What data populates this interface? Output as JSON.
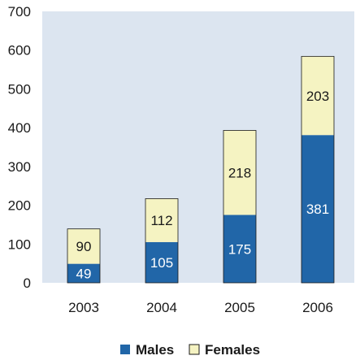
{
  "chart_data": {
    "type": "bar",
    "stacked": true,
    "categories": [
      "2003",
      "2004",
      "2005",
      "2006"
    ],
    "series": [
      {
        "name": "Males",
        "values": [
          49,
          105,
          175,
          381
        ],
        "color": "#2166a8",
        "label_color": "#ffffff"
      },
      {
        "name": "Females",
        "values": [
          90,
          112,
          218,
          203
        ],
        "color": "#f5f3c2",
        "label_color": "#1a1a1a"
      }
    ],
    "ylim": [
      0,
      700
    ],
    "yticks": [
      "0",
      "100",
      "200",
      "300",
      "400",
      "500",
      "600",
      "700"
    ],
    "grid": false,
    "plot_background": "#dce5f0",
    "legend_position": "bottom-center"
  }
}
